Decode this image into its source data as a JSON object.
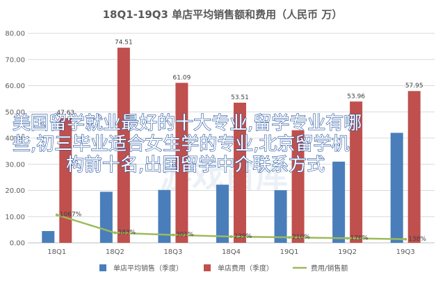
{
  "chart_data": {
    "type": "bar",
    "title": "18Q1-19Q3 单店平均销售额和费用（人民币 万）",
    "categories": [
      "18Q1",
      "18Q2",
      "18Q3",
      "18Q4",
      "19Q1",
      "19Q2",
      "19Q3"
    ],
    "ylim": [
      0,
      80
    ],
    "yticks": [
      "0.00",
      "10.00",
      "20.00",
      "30.00",
      "40.00",
      "50.00",
      "60.00",
      "70.00",
      "80.00"
    ],
    "grid": true,
    "legend_position": "bottom",
    "series": [
      {
        "name": "单店平均销售（季度）",
        "kind": "bar",
        "color": "#4a7ebb",
        "values": [
          4.5,
          19.5,
          20.2,
          22.2,
          20.1,
          31.0,
          42.0
        ],
        "labels": []
      },
      {
        "name": "单店费用（季度）",
        "kind": "bar",
        "color": "#c0504d",
        "values": [
          47.63,
          74.51,
          61.09,
          53.51,
          43.0,
          53.96,
          57.95
        ],
        "labels": [
          "47.63",
          "74.51",
          "61.09",
          "53.51",
          "",
          "53.96",
          "57.95"
        ]
      },
      {
        "name": "费用/销售额",
        "kind": "line",
        "color": "#9bbb59",
        "values": [
          10.67,
          3.83,
          3.01,
          2.39,
          2.1,
          1.76,
          1.38
        ],
        "labels": [
          "1067%",
          "383%",
          "301%",
          "239%",
          "210%",
          "176%",
          "138%"
        ]
      }
    ]
  },
  "overlay_lines": [
    "美国留学就业最好的十大专业,留学专业有哪",
    "些,初三毕业适合女生学的专业,北京留学机",
    "构前十名,出国留学中介联系方式"
  ],
  "watermark_text": "游戏首库"
}
